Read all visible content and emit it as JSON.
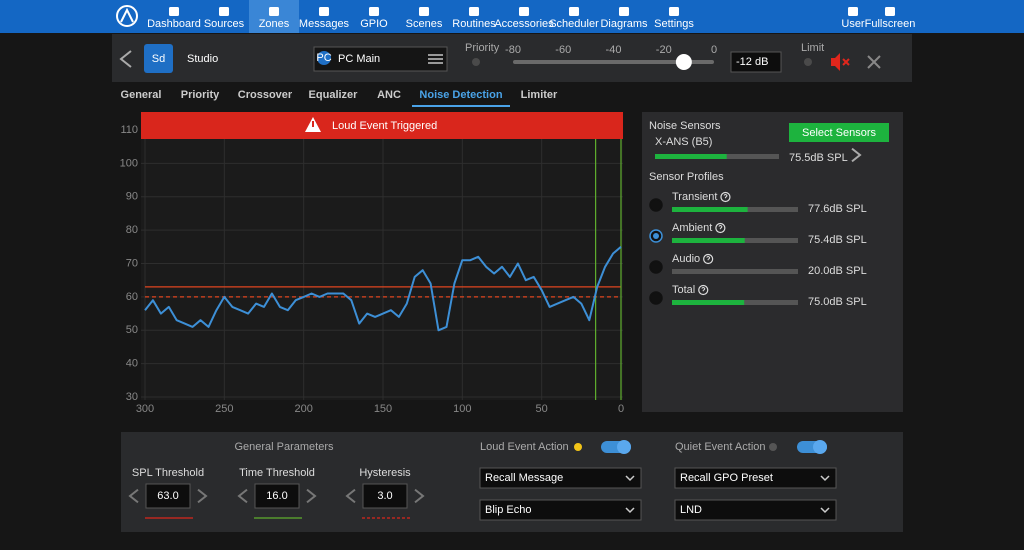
{
  "nav": {
    "items": [
      "Dashboard",
      "Sources",
      "Zones",
      "Messages",
      "GPIO",
      "Scenes",
      "Routines",
      "Accessories",
      "Scheduler",
      "Diagrams",
      "Settings"
    ],
    "active": 2,
    "right": [
      "User",
      "Fullscreen"
    ]
  },
  "zone": {
    "badge": "Sd",
    "name": "Studio",
    "source_badge": "PC",
    "source": "PC Main",
    "priority_label": "Priority",
    "volume_ticks": [
      -80,
      -60,
      -40,
      -20,
      0
    ],
    "volume": {
      "value": -12,
      "label": "-12 dB"
    },
    "limit_label": "Limit"
  },
  "tabs": {
    "items": [
      "General",
      "Priority",
      "Crossover",
      "Equalizer",
      "ANC",
      "Noise Detection",
      "Limiter"
    ],
    "active": 5
  },
  "chart_data": {
    "type": "line",
    "banner": "Loud Event Triggered",
    "x": [
      300,
      295,
      290,
      285,
      280,
      275,
      270,
      265,
      260,
      255,
      250,
      245,
      240,
      235,
      230,
      225,
      220,
      215,
      210,
      205,
      200,
      195,
      190,
      185,
      180,
      175,
      170,
      165,
      160,
      155,
      150,
      145,
      140,
      135,
      130,
      125,
      120,
      115,
      110,
      105,
      100,
      95,
      90,
      85,
      80,
      75,
      70,
      65,
      60,
      55,
      50,
      45,
      40,
      35,
      30,
      25,
      20,
      15,
      10,
      5,
      0
    ],
    "series": [
      {
        "color": "#3d8fd6",
        "values": [
          56,
          59,
          55,
          57,
          53,
          52,
          51,
          53,
          51,
          56,
          60,
          57,
          56,
          55,
          58,
          57,
          61,
          57,
          56,
          59,
          60,
          61,
          60,
          61,
          61,
          61,
          59,
          52,
          55,
          54,
          55,
          56,
          54,
          58,
          66,
          68,
          64,
          50,
          51,
          64,
          71,
          71,
          72,
          69,
          67,
          69,
          66,
          70,
          65,
          66,
          62,
          57,
          58,
          59,
          60,
          58,
          53,
          63,
          69,
          73,
          75
        ]
      }
    ],
    "xlim": [
      300,
      0
    ],
    "xticks": [
      300,
      250,
      200,
      150,
      100,
      50,
      0
    ],
    "ylim": [
      30,
      110
    ],
    "yticks": [
      30,
      40,
      50,
      60,
      70,
      80,
      90,
      100,
      110
    ],
    "grid": true,
    "threshold_lines": [
      {
        "value": 63,
        "color": "#e0451f",
        "style": "solid"
      },
      {
        "value": 60,
        "color": "#e0451f",
        "style": "dashed"
      }
    ],
    "vertical_lines": [
      {
        "value": 16,
        "color": "#5fae2e"
      },
      {
        "value": 0,
        "color": "#5fae2e"
      }
    ]
  },
  "sensors": {
    "title": "Noise Sensors",
    "button": "Select Sensors",
    "sensor": {
      "name": "X-ANS (B5)",
      "level": {
        "value": 75.5,
        "label": "75.5dB SPL"
      }
    },
    "profiles_title": "Sensor Profiles",
    "profiles": [
      {
        "name": "Transient",
        "level": {
          "value": 77.6,
          "label": "77.6dB SPL"
        }
      },
      {
        "name": "Ambient",
        "level": {
          "value": 75.4,
          "label": "75.4dB SPL"
        }
      },
      {
        "name": "Audio",
        "level": {
          "value": 20.0,
          "label": "20.0dB SPL"
        }
      },
      {
        "name": "Total",
        "level": {
          "value": 75.0,
          "label": "75.0dB SPL"
        }
      }
    ],
    "selected": 1,
    "meter_range": [
      20,
      116
    ]
  },
  "parameters": {
    "title": "General Parameters",
    "fields": [
      {
        "label": "SPL Threshold",
        "value": "63.0"
      },
      {
        "label": "Time Threshold",
        "value": "16.0"
      },
      {
        "label": "Hysteresis",
        "value": "3.0"
      }
    ],
    "loud": {
      "title": "Loud Event Action",
      "enabled": true,
      "options": [
        "Recall Message",
        "Blip Echo"
      ]
    },
    "quiet": {
      "title": "Quiet Event Action",
      "enabled": true,
      "options": [
        "Recall GPO Preset",
        "LND"
      ]
    }
  }
}
